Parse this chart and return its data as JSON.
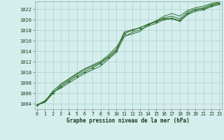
{
  "title": "Graphe pression niveau de la mer (hPa)",
  "background_color": "#d4eeee",
  "grid_color": "#b0cfc8",
  "line_color": "#2d6e2d",
  "marker_color": "#2d6e2d",
  "ylim": [
    1003.0,
    1023.5
  ],
  "xlim": [
    -0.3,
    23.3
  ],
  "yticks": [
    1004,
    1006,
    1008,
    1010,
    1012,
    1014,
    1016,
    1018,
    1020,
    1022
  ],
  "xticks": [
    0,
    1,
    2,
    3,
    4,
    5,
    6,
    7,
    8,
    9,
    10,
    11,
    12,
    13,
    14,
    15,
    16,
    17,
    18,
    19,
    20,
    21,
    22,
    23
  ],
  "series": [
    [
      1003.8,
      1004.6,
      1006.1,
      1007.3,
      1008.3,
      1009.3,
      1010.1,
      1010.9,
      1011.7,
      1012.8,
      1014.1,
      1017.4,
      1018.0,
      1018.5,
      1019.1,
      1019.6,
      1020.2,
      1020.3,
      1019.9,
      1021.2,
      1021.9,
      1022.1,
      1022.7,
      1023.1
    ],
    [
      1003.8,
      1004.3,
      1006.0,
      1007.6,
      1008.6,
      1009.6,
      1010.5,
      1011.2,
      1011.9,
      1013.0,
      1014.4,
      1017.7,
      1018.1,
      1018.5,
      1019.2,
      1019.7,
      1020.4,
      1020.7,
      1020.2,
      1021.5,
      1022.0,
      1022.3,
      1022.9,
      1023.2
    ],
    [
      1003.8,
      1004.5,
      1006.3,
      1007.0,
      1008.0,
      1008.9,
      1009.8,
      1010.5,
      1011.2,
      1012.5,
      1013.8,
      1016.8,
      1017.6,
      1018.1,
      1018.8,
      1019.3,
      1020.0,
      1020.2,
      1019.7,
      1021.0,
      1021.6,
      1021.9,
      1022.5,
      1022.9
    ],
    [
      1003.8,
      1004.5,
      1006.5,
      1007.8,
      1008.8,
      1009.8,
      1010.7,
      1011.4,
      1012.1,
      1013.3,
      1014.8,
      1016.9,
      1017.3,
      1017.8,
      1019.1,
      1019.8,
      1020.7,
      1021.2,
      1020.7,
      1021.8,
      1022.3,
      1022.6,
      1023.1,
      1023.4
    ]
  ]
}
